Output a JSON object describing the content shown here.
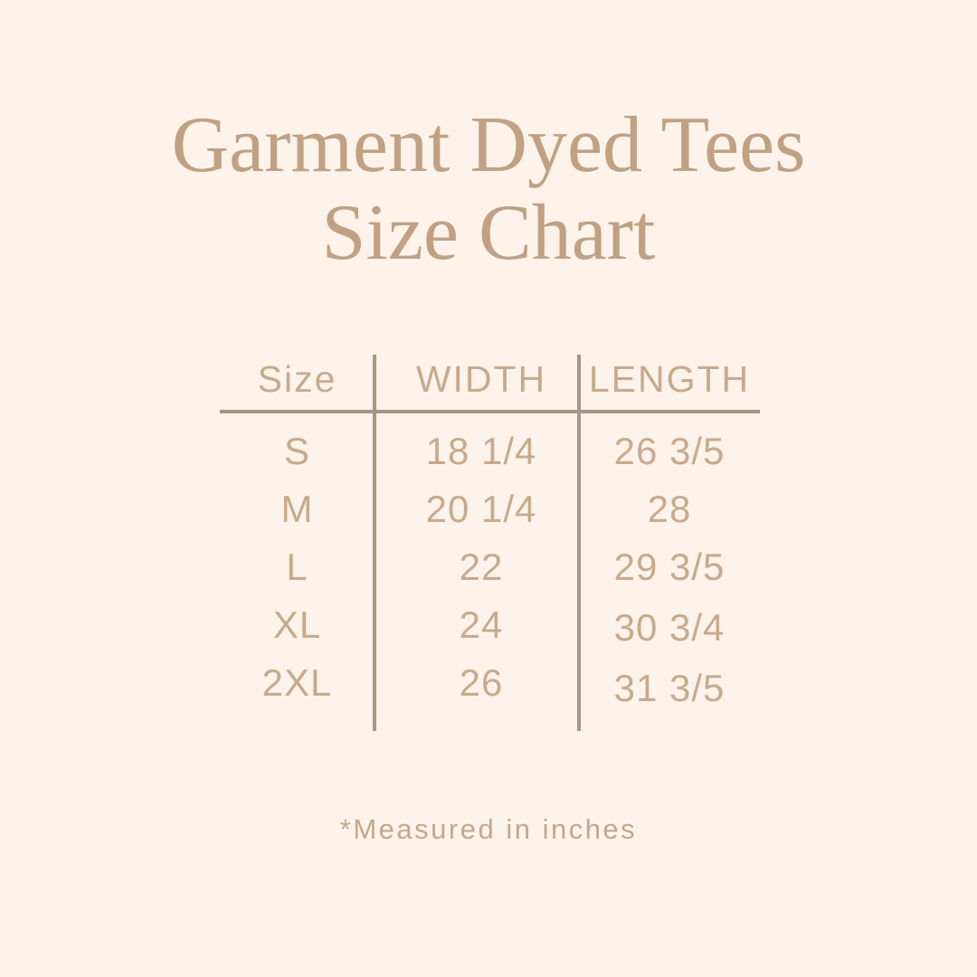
{
  "header": {
    "title_line1": "Garment Dyed Tees",
    "title_line2": "Size Chart"
  },
  "footnote": "*Measured in inches",
  "chart_data": {
    "type": "table",
    "title": "Garment Dyed Tees Size Chart",
    "columns": [
      "Size",
      "WIDTH",
      "LENGTH"
    ],
    "rows": [
      [
        "S",
        "18 1/4",
        "26 3/5"
      ],
      [
        "M",
        "20 1/4",
        "28"
      ],
      [
        "L",
        "22",
        "29 3/5"
      ],
      [
        "XL",
        "24",
        "30 3/4"
      ],
      [
        "2XL",
        "26",
        "31 3/5"
      ]
    ],
    "note": "*Measured in inches",
    "units": "inches",
    "layout": {
      "grid": "off",
      "column_dividers": true,
      "header_rule": true
    }
  },
  "colors": {
    "bg": "#fdf3ea",
    "title": "#c0a183",
    "text": "#c7aa8e",
    "line": "#a89585",
    "note": "#c3a78c"
  }
}
